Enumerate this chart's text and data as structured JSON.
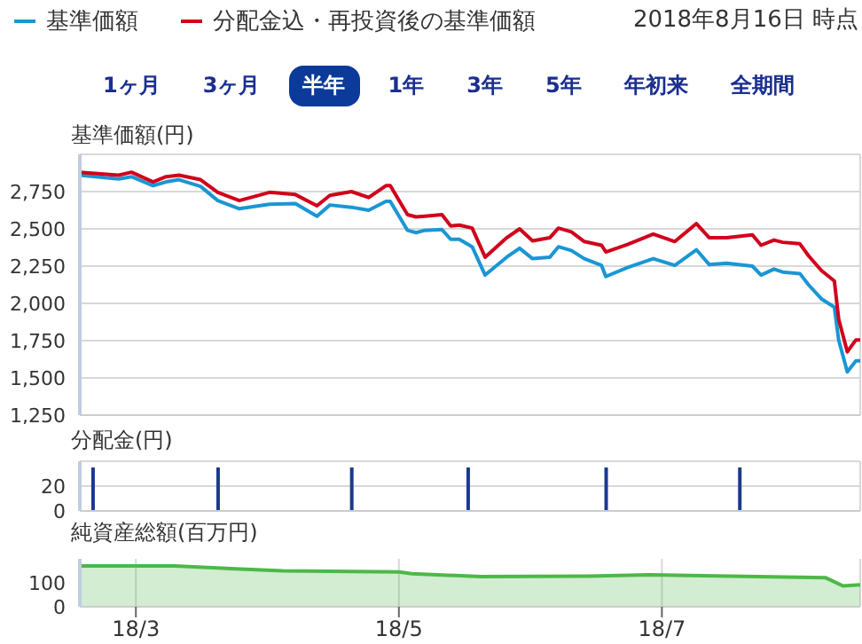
{
  "chart_data": [
    {
      "type": "line",
      "ylabel": "基準価額(円)",
      "legend": "top left",
      "grid": true,
      "tick_labels": "y",
      "annotations": [
        "2018年8月16日 時点",
        "1ヶ月",
        "3ヶ月",
        "半年",
        "1年",
        "3年",
        "5年",
        "年初来",
        "全期間"
      ],
      "xlim": [
        "2018-02-16",
        "2018-08-16"
      ],
      "xticks": [
        {
          "value": "2018-03-01",
          "label": null
        },
        {
          "value": "2018-05-01",
          "label": null
        },
        {
          "value": "2018-07-01",
          "label": null
        }
      ],
      "ylim": [
        1250,
        3000
      ],
      "yticks": [
        {
          "value": 1250,
          "label": "1,250"
        },
        {
          "value": 1500,
          "label": "1,500"
        },
        {
          "value": 1750,
          "label": "1,750"
        },
        {
          "value": 2000,
          "label": "2,000"
        },
        {
          "value": 2250,
          "label": "2,250"
        },
        {
          "value": 2500,
          "label": "2,500"
        },
        {
          "value": 2750,
          "label": "2,750"
        }
      ],
      "x": [
        "2018-02-16",
        "2018-02-25",
        "2018-02-28",
        "2018-03-05",
        "2018-03-08",
        "2018-03-11",
        "2018-03-16",
        "2018-03-20",
        "2018-03-25",
        "2018-04-01",
        "2018-04-07",
        "2018-04-12",
        "2018-04-15",
        "2018-04-20",
        "2018-04-24",
        "2018-04-28",
        "2018-04-29",
        "2018-05-03",
        "2018-05-05",
        "2018-05-07",
        "2018-05-11",
        "2018-05-13",
        "2018-05-15",
        "2018-05-18",
        "2018-05-21",
        "2018-05-26",
        "2018-05-29",
        "2018-06-01",
        "2018-06-05",
        "2018-06-07",
        "2018-06-10",
        "2018-06-13",
        "2018-06-17",
        "2018-06-18",
        "2018-06-23",
        "2018-06-29",
        "2018-07-04",
        "2018-07-09",
        "2018-07-12",
        "2018-07-16",
        "2018-07-22",
        "2018-07-24",
        "2018-07-27",
        "2018-07-29",
        "2018-08-02",
        "2018-08-04",
        "2018-08-07",
        "2018-08-10",
        "2018-08-11",
        "2018-08-13",
        "2018-08-15",
        "2018-08-16"
      ],
      "series": [
        {
          "name": "基準価額",
          "color": "#1a96d4",
          "values": [
            2860,
            2835,
            2850,
            2790,
            2815,
            2830,
            2785,
            2690,
            2635,
            2665,
            2670,
            2585,
            2660,
            2645,
            2625,
            2685,
            2685,
            2490,
            2475,
            2490,
            2495,
            2430,
            2430,
            2380,
            2190,
            2310,
            2370,
            2300,
            2310,
            2380,
            2355,
            2300,
            2255,
            2180,
            2240,
            2300,
            2255,
            2360,
            2260,
            2270,
            2250,
            2190,
            2230,
            2210,
            2200,
            2125,
            2030,
            1975,
            1755,
            1540,
            1615,
            1615
          ]
        },
        {
          "name": "分配金込・再投資後の基準価額",
          "color": "#d0021b",
          "values": [
            2880,
            2860,
            2880,
            2815,
            2850,
            2860,
            2830,
            2745,
            2690,
            2745,
            2730,
            2655,
            2725,
            2750,
            2710,
            2790,
            2790,
            2595,
            2580,
            2585,
            2595,
            2520,
            2525,
            2505,
            2310,
            2440,
            2500,
            2420,
            2440,
            2505,
            2480,
            2415,
            2390,
            2345,
            2395,
            2465,
            2415,
            2535,
            2440,
            2440,
            2460,
            2390,
            2425,
            2410,
            2400,
            2320,
            2220,
            2150,
            1895,
            1675,
            1755,
            1755
          ]
        }
      ]
    },
    {
      "type": "bar",
      "ylabel": "分配金(円)",
      "grid": true,
      "tick_labels": "y",
      "xlim": [
        "2018-02-16",
        "2018-08-16"
      ],
      "xticks": [
        {
          "value": "2018-03-01",
          "label": null
        },
        {
          "value": "2018-05-01",
          "label": null
        },
        {
          "value": "2018-07-01",
          "label": null
        }
      ],
      "ylim": [
        0,
        40
      ],
      "yticks": [
        0,
        20
      ],
      "x": [
        "2018-02-19",
        "2018-03-20",
        "2018-04-20",
        "2018-05-17",
        "2018-06-18",
        "2018-07-19"
      ],
      "series": [
        {
          "color": "#1a3a8f",
          "values": [
            35,
            35,
            35,
            35,
            35,
            35
          ]
        }
      ]
    },
    {
      "type": "area",
      "ylabel": "純資産総額(百万円)",
      "grid": "x",
      "xlim": [
        "2018-02-16",
        "2018-08-16"
      ],
      "xticks": [
        {
          "value": "2018-03-01",
          "label": "18/3"
        },
        {
          "value": "2018-05-01",
          "label": "18/5"
        },
        {
          "value": "2018-07-01",
          "label": "18/7"
        }
      ],
      "ylim": [
        0,
        200
      ],
      "yticks": [
        0,
        100
      ],
      "x": [
        "2018-02-16",
        "2018-03-10",
        "2018-04-04",
        "2018-05-01",
        "2018-05-04",
        "2018-05-20",
        "2018-06-14",
        "2018-06-28",
        "2018-08-08",
        "2018-08-12",
        "2018-08-16"
      ],
      "series": [
        {
          "color": "#4db848",
          "values": [
            170,
            170,
            150,
            145,
            138,
            126,
            128,
            133,
            121,
            87,
            92
          ]
        }
      ]
    }
  ]
}
